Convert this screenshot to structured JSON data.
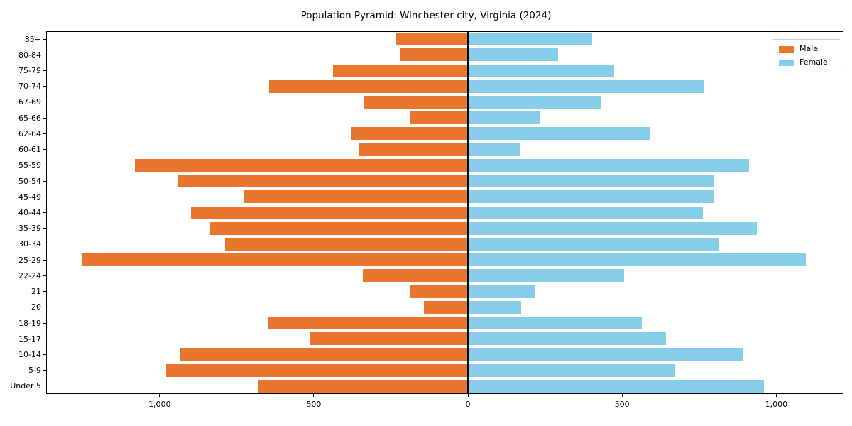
{
  "title": "Population Pyramid: Winchester city, Virginia (2024)",
  "legend": {
    "male_label": "Male",
    "female_label": "Female"
  },
  "colors": {
    "male": "#e8762d",
    "female": "#87ceeb",
    "axis": "#000000",
    "legend_border": "#cccccc",
    "background": "#ffffff"
  },
  "chart_data": {
    "type": "bar",
    "variant": "population-pyramid",
    "title": "Population Pyramid: Winchester city, Virginia (2024)",
    "xlabel": "",
    "ylabel": "",
    "grid": false,
    "legend_position": "upper right",
    "xlim": [
      -1368,
      1218
    ],
    "xticks": [
      {
        "value": -1000,
        "label": "1,000"
      },
      {
        "value": -500,
        "label": "500"
      },
      {
        "value": 0,
        "label": "0"
      },
      {
        "value": 500,
        "label": "500"
      },
      {
        "value": 1000,
        "label": "1,000"
      }
    ],
    "categories_top_to_bottom": [
      "85+",
      "80-84",
      "75-79",
      "70-74",
      "67-69",
      "65-66",
      "62-64",
      "60-61",
      "55-59",
      "50-54",
      "45-49",
      "40-44",
      "35-39",
      "30-34",
      "25-29",
      "22-24",
      "21",
      "20",
      "18-19",
      "15-17",
      "10-14",
      "5-9",
      "Under 5"
    ],
    "series": [
      {
        "name": "Male",
        "side": "left",
        "color": "#e8762d",
        "values": [
          233,
          218,
          437,
          646,
          338,
          186,
          378,
          355,
          1080,
          942,
          725,
          898,
          835,
          787,
          1250,
          341,
          189,
          143,
          647,
          511,
          935,
          979,
          679
        ]
      },
      {
        "name": "Female",
        "side": "right",
        "color": "#87ceeb",
        "values": [
          403,
          292,
          474,
          765,
          433,
          233,
          590,
          170,
          912,
          799,
          799,
          762,
          937,
          813,
          1096,
          507,
          219,
          173,
          564,
          642,
          893,
          670,
          960
        ]
      }
    ]
  }
}
